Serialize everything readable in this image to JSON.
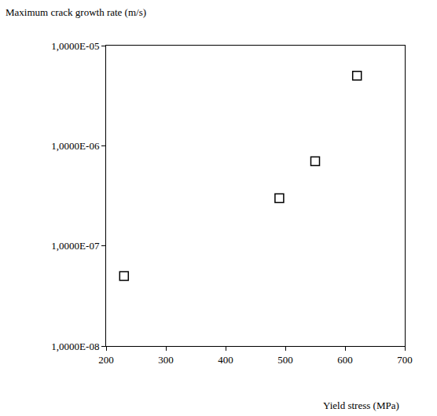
{
  "chart_data": {
    "type": "scatter",
    "xlabel": "Yield stress (MPa)",
    "ylabel": "Maximum crack growth rate (m/s)",
    "x": [
      230,
      490,
      550,
      620
    ],
    "values": [
      5e-08,
      3e-07,
      7e-07,
      5e-06
    ],
    "color": "#000000",
    "marker": "square-open",
    "log": "y",
    "grid": false,
    "xlim": [
      200,
      700
    ],
    "xticks": [
      200,
      300,
      400,
      500,
      600,
      700
    ],
    "ylim": [
      1e-08,
      1e-05
    ],
    "yticks": [
      {
        "value": 1e-08,
        "label": "1,0000E-08"
      },
      {
        "value": 1e-07,
        "label": "1,0000E-07"
      },
      {
        "value": 1e-06,
        "label": "1,0000E-06"
      },
      {
        "value": 1e-05,
        "label": "1,0000E-05"
      }
    ]
  }
}
